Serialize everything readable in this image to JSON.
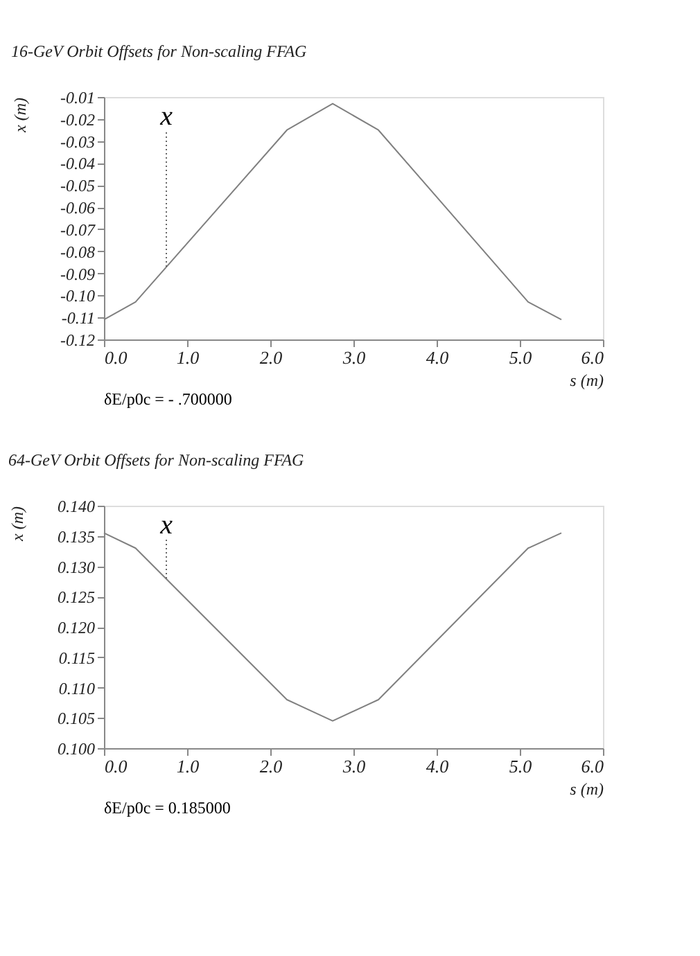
{
  "chart_data": [
    {
      "type": "line",
      "title": "16-GeV Orbit Offsets for Non-scaling FFAG",
      "xlabel": "s (m)",
      "ylabel": "x (m)",
      "series": [
        {
          "color": "#808080",
          "x": [
            0,
            0.38,
            2.2,
            2.75,
            3.3,
            5.1,
            5.5
          ],
          "values": [
            -0.111,
            -0.103,
            -0.025,
            -0.013,
            -0.025,
            -0.103,
            -0.111
          ]
        }
      ],
      "xlim": [
        0,
        6
      ],
      "xticks": [
        {
          "value": 0,
          "label": "0.0"
        },
        {
          "value": 1,
          "label": "1.0"
        },
        {
          "value": 2,
          "label": "2.0"
        },
        {
          "value": 3,
          "label": "3.0"
        },
        {
          "value": 4,
          "label": "4.0"
        },
        {
          "value": 5,
          "label": "5.0"
        },
        {
          "value": 6,
          "label": "6.0"
        }
      ],
      "ylim": [
        -0.12,
        -0.01
      ],
      "yticks": [
        {
          "value": -0.12,
          "label": "-0.12"
        },
        {
          "value": -0.11,
          "label": "-0.11"
        },
        {
          "value": -0.1,
          "label": "-0.10"
        },
        {
          "value": -0.09,
          "label": "-0.09"
        },
        {
          "value": -0.08,
          "label": "-0.08"
        },
        {
          "value": -0.07,
          "label": "-0.07"
        },
        {
          "value": -0.06,
          "label": "-0.06"
        },
        {
          "value": -0.05,
          "label": "-0.05"
        },
        {
          "value": -0.04,
          "label": "-0.04"
        },
        {
          "value": -0.03,
          "label": "-0.03"
        },
        {
          "value": -0.02,
          "label": "-0.02"
        },
        {
          "value": -0.01,
          "label": "-0.01"
        }
      ],
      "annotations": [
        {
          "text": "x",
          "x": 0.75,
          "y": -0.087
        },
        "δE/p0c  =  - .700000"
      ],
      "grid": false,
      "marker": "none",
      "line_style": "solid"
    },
    {
      "type": "line",
      "title": "64-GeV Orbit Offsets for Non-scaling FFAG",
      "xlabel": "s (m)",
      "ylabel": "x (m)",
      "series": [
        {
          "color": "#808080",
          "x": [
            0,
            0.38,
            2.2,
            2.75,
            3.3,
            5.1,
            5.5
          ],
          "values": [
            0.1355,
            0.133,
            0.108,
            0.1045,
            0.108,
            0.133,
            0.1355
          ]
        }
      ],
      "xlim": [
        0,
        6
      ],
      "xticks": [
        {
          "value": 0,
          "label": "0.0"
        },
        {
          "value": 1,
          "label": "1.0"
        },
        {
          "value": 2,
          "label": "2.0"
        },
        {
          "value": 3,
          "label": "3.0"
        },
        {
          "value": 4,
          "label": "4.0"
        },
        {
          "value": 5,
          "label": "5.0"
        },
        {
          "value": 6,
          "label": "6.0"
        }
      ],
      "ylim": [
        0.1,
        0.14
      ],
      "yticks": [
        {
          "value": 0.1,
          "label": "0.100"
        },
        {
          "value": 0.105,
          "label": "0.105"
        },
        {
          "value": 0.11,
          "label": "0.110"
        },
        {
          "value": 0.115,
          "label": "0.115"
        },
        {
          "value": 0.12,
          "label": "0.120"
        },
        {
          "value": 0.125,
          "label": "0.125"
        },
        {
          "value": 0.13,
          "label": "0.130"
        },
        {
          "value": 0.135,
          "label": "0.135"
        },
        {
          "value": 0.14,
          "label": "0.140"
        }
      ],
      "annotations": [
        {
          "text": "x",
          "x": 0.75,
          "y": 0.128
        },
        "δE/p0c  =  0.185000"
      ],
      "grid": false,
      "marker": "none",
      "line_style": "solid"
    }
  ]
}
